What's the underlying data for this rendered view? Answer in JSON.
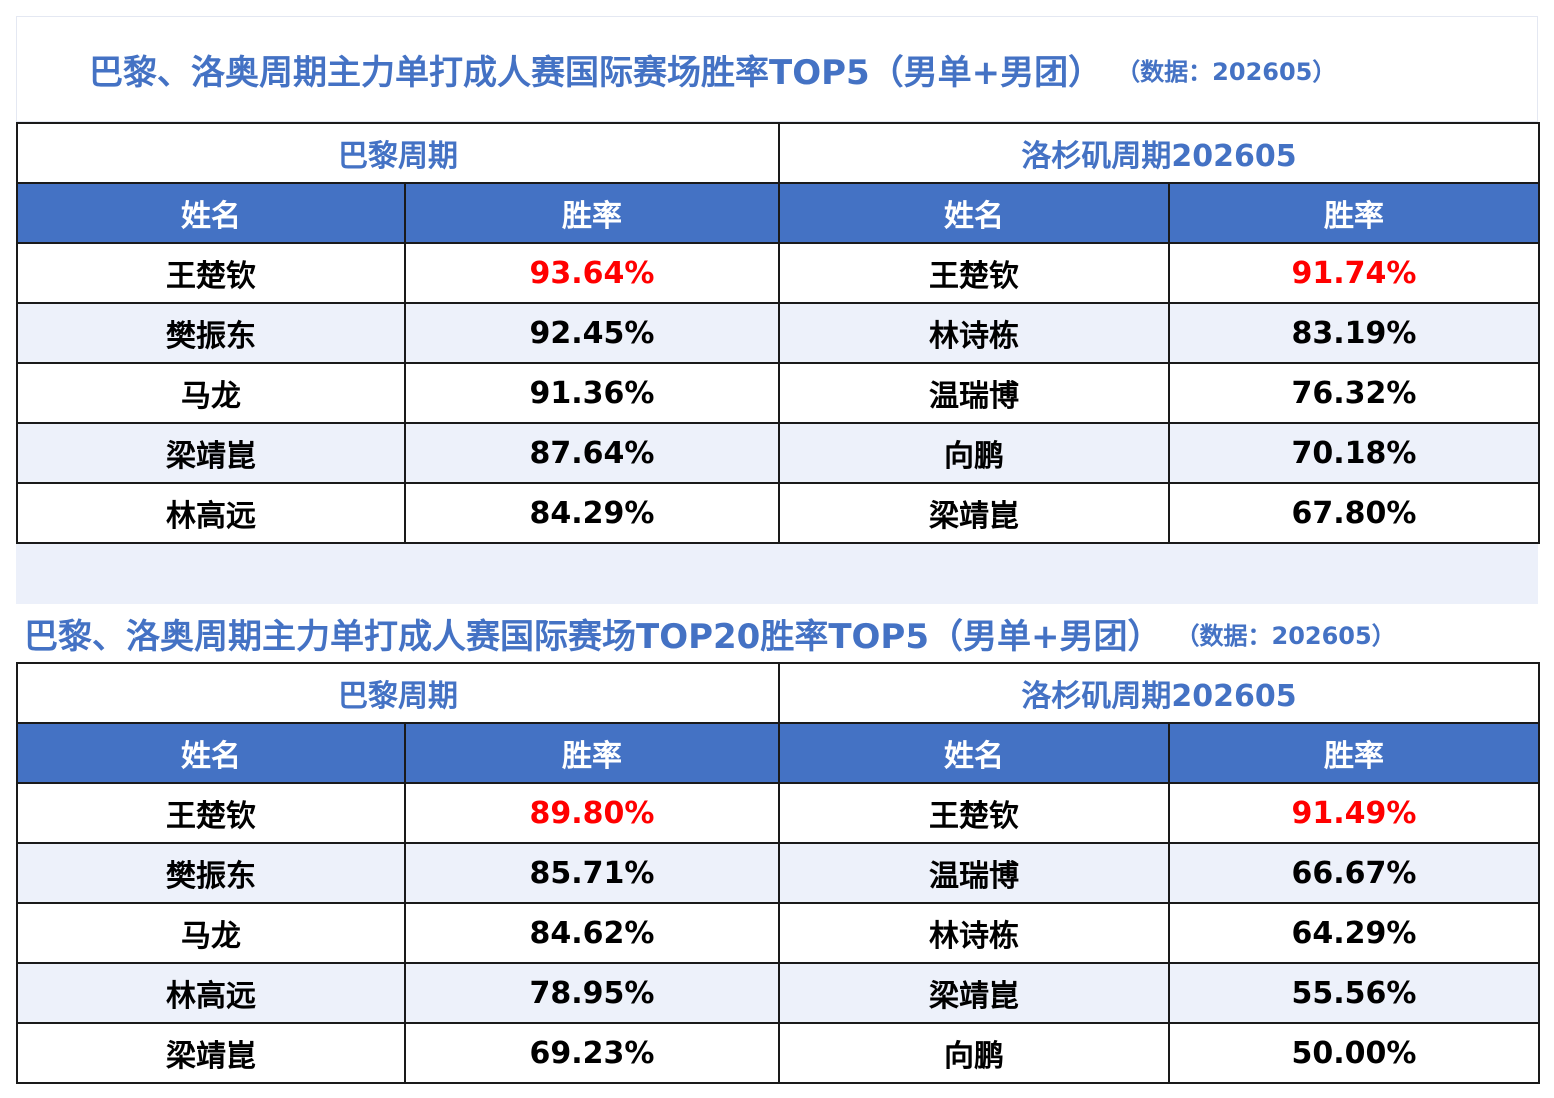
{
  "colors": {
    "accent": "#4472c4",
    "header_bg": "#4472c4",
    "alt_row_bg": "#edf1fa",
    "highlight": "#ff0000"
  },
  "sections": [
    {
      "title": "巴黎、洛奥周期主力单打成人赛国际赛场胜率TOP5（男单+男团）",
      "subtitle": "（数据：202605）",
      "left_period": "巴黎周期",
      "right_period": "洛杉矶周期202605",
      "col_name": "姓名",
      "col_rate": "胜率",
      "rows": [
        {
          "left_name": "王楚钦",
          "left_rate": "93.64%",
          "right_name": "王楚钦",
          "right_rate": "91.74%"
        },
        {
          "left_name": "樊振东",
          "left_rate": "92.45%",
          "right_name": "林诗栋",
          "right_rate": "83.19%"
        },
        {
          "left_name": "马龙",
          "left_rate": "91.36%",
          "right_name": "温瑞博",
          "right_rate": "76.32%"
        },
        {
          "left_name": "梁靖崑",
          "left_rate": "87.64%",
          "right_name": "向鹏",
          "right_rate": "70.18%"
        },
        {
          "left_name": "林高远",
          "left_rate": "84.29%",
          "right_name": "梁靖崑",
          "right_rate": "67.80%"
        }
      ]
    },
    {
      "title": "巴黎、洛奥周期主力单打成人赛国际赛场TOP20胜率TOP5（男单+男团）",
      "subtitle": "（数据：202605）",
      "left_period": "巴黎周期",
      "right_period": "洛杉矶周期202605",
      "col_name": "姓名",
      "col_rate": "胜率",
      "rows": [
        {
          "left_name": "王楚钦",
          "left_rate": "89.80%",
          "right_name": "王楚钦",
          "right_rate": "91.49%"
        },
        {
          "left_name": "樊振东",
          "left_rate": "85.71%",
          "right_name": "温瑞博",
          "right_rate": "66.67%"
        },
        {
          "left_name": "马龙",
          "left_rate": "84.62%",
          "right_name": "林诗栋",
          "right_rate": "64.29%"
        },
        {
          "left_name": "林高远",
          "left_rate": "78.95%",
          "right_name": "梁靖崑",
          "right_rate": "55.56%"
        },
        {
          "left_name": "梁靖崑",
          "left_rate": "69.23%",
          "right_name": "向鹏",
          "right_rate": "50.00%"
        }
      ]
    }
  ]
}
